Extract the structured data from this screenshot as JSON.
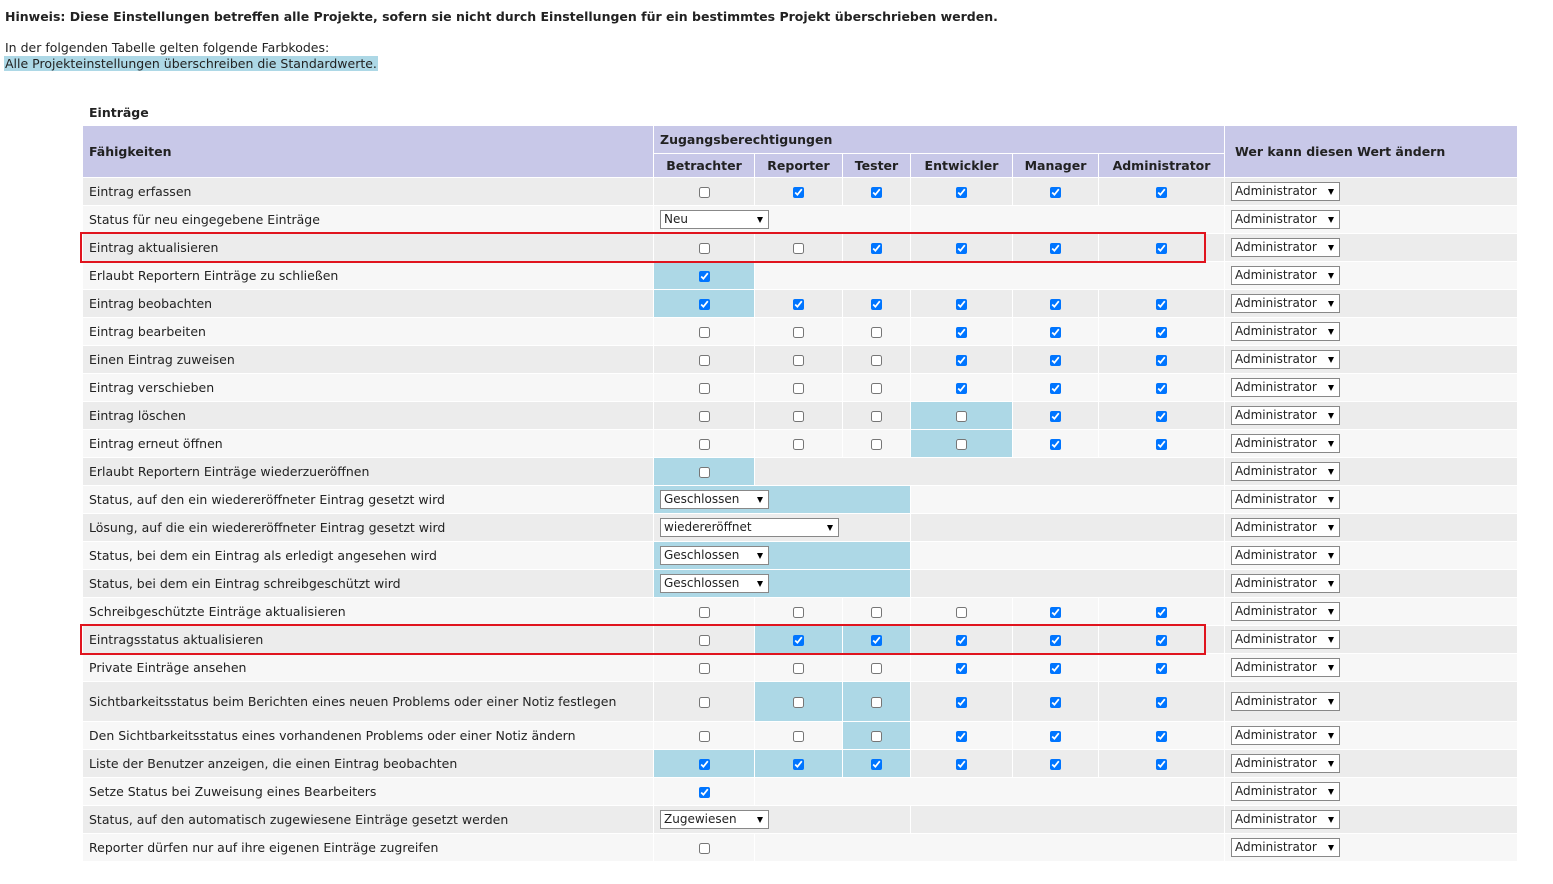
{
  "header": {
    "note": "Hinweis: Diese Einstellungen betreffen alle Projekte, sofern sie nicht durch Einstellungen für ein bestimmtes Projekt überschrieben werden."
  },
  "legend": {
    "intro": "In der folgenden Tabelle gelten folgende Farbkodes:",
    "items": [
      "Alle Projekteinstellungen überschreiben die Standardwerte."
    ]
  },
  "table": {
    "title": "Einträge",
    "col_capability": "Fähigkeiten",
    "col_group": "Zugangsberechtigungen",
    "roles": [
      "Betrachter",
      "Reporter",
      "Tester",
      "Entwickler",
      "Manager",
      "Administrator"
    ],
    "col_who": "Wer kann diesen Wert ändern",
    "rows": [
      {
        "label": "Eintrag erfassen",
        "checked": [
          false,
          true,
          true,
          true,
          true,
          true
        ],
        "highlight": [
          false,
          false,
          false,
          false,
          false,
          false
        ],
        "who": "Administrator"
      },
      {
        "label": "Status für neu eingegebene Einträge",
        "select": "Neu",
        "highlight": false,
        "who": "Administrator"
      },
      {
        "label": "Eintrag aktualisieren",
        "checked": [
          false,
          false,
          true,
          true,
          true,
          true
        ],
        "highlight": [
          false,
          false,
          false,
          false,
          false,
          false
        ],
        "who": "Administrator",
        "outlined": true
      },
      {
        "label": "Erlaubt Reportern Einträge zu schließen",
        "checked": true,
        "highlight": true,
        "who": "Administrator"
      },
      {
        "label": "Eintrag beobachten",
        "checked": [
          true,
          true,
          true,
          true,
          true,
          true
        ],
        "highlight": [
          true,
          false,
          false,
          false,
          false,
          false
        ],
        "who": "Administrator"
      },
      {
        "label": "Eintrag bearbeiten",
        "checked": [
          false,
          false,
          false,
          true,
          true,
          true
        ],
        "highlight": [
          false,
          false,
          false,
          false,
          false,
          false
        ],
        "who": "Administrator"
      },
      {
        "label": "Einen Eintrag zuweisen",
        "checked": [
          false,
          false,
          false,
          true,
          true,
          true
        ],
        "highlight": [
          false,
          false,
          false,
          false,
          false,
          false
        ],
        "who": "Administrator"
      },
      {
        "label": "Eintrag verschieben",
        "checked": [
          false,
          false,
          false,
          true,
          true,
          true
        ],
        "highlight": [
          false,
          false,
          false,
          false,
          false,
          false
        ],
        "who": "Administrator"
      },
      {
        "label": "Eintrag löschen",
        "checked": [
          false,
          false,
          false,
          false,
          true,
          true
        ],
        "highlight": [
          false,
          false,
          false,
          true,
          false,
          false
        ],
        "who": "Administrator"
      },
      {
        "label": "Eintrag erneut öffnen",
        "checked": [
          false,
          false,
          false,
          false,
          true,
          true
        ],
        "highlight": [
          false,
          false,
          false,
          true,
          false,
          false
        ],
        "who": "Administrator"
      },
      {
        "label": "Erlaubt Reportern Einträge wiederzueröffnen",
        "checked": false,
        "highlight": true,
        "who": "Administrator"
      },
      {
        "label": "Status, auf den ein wiedereröffneter Eintrag gesetzt wird",
        "select": "Geschlossen",
        "highlight": true,
        "who": "Administrator"
      },
      {
        "label": "Lösung, auf die ein wiedereröffneter Eintrag gesetzt wird",
        "select": "wiedereröffnet",
        "highlight": false,
        "who": "Administrator"
      },
      {
        "label": "Status, bei dem ein Eintrag als erledigt angesehen wird",
        "select": "Geschlossen",
        "highlight": true,
        "who": "Administrator"
      },
      {
        "label": "Status, bei dem ein Eintrag schreibgeschützt wird",
        "select": "Geschlossen",
        "highlight": true,
        "who": "Administrator"
      },
      {
        "label": "Schreibgeschützte Einträge aktualisieren",
        "checked": [
          false,
          false,
          false,
          false,
          true,
          true
        ],
        "highlight": [
          false,
          false,
          false,
          false,
          false,
          false
        ],
        "who": "Administrator"
      },
      {
        "label": "Eintragsstatus aktualisieren",
        "checked": [
          false,
          true,
          true,
          true,
          true,
          true
        ],
        "highlight": [
          false,
          true,
          true,
          false,
          false,
          false
        ],
        "who": "Administrator",
        "outlined": true
      },
      {
        "label": "Private Einträge ansehen",
        "checked": [
          false,
          false,
          false,
          true,
          true,
          true
        ],
        "highlight": [
          false,
          false,
          false,
          false,
          false,
          false
        ],
        "who": "Administrator"
      },
      {
        "label": "Sichtbarkeitsstatus beim Berichten eines neuen Problems oder einer Notiz festlegen",
        "checked": [
          false,
          false,
          false,
          true,
          true,
          true
        ],
        "highlight": [
          false,
          true,
          true,
          false,
          false,
          false
        ],
        "who": "Administrator"
      },
      {
        "label": "Den Sichtbarkeitsstatus eines vorhandenen Problems oder einer Notiz ändern",
        "checked": [
          false,
          false,
          false,
          true,
          true,
          true
        ],
        "highlight": [
          false,
          false,
          true,
          false,
          false,
          false
        ],
        "who": "Administrator"
      },
      {
        "label": "Liste der Benutzer anzeigen, die einen Eintrag beobachten",
        "checked": [
          true,
          true,
          true,
          true,
          true,
          true
        ],
        "highlight": [
          true,
          true,
          true,
          false,
          false,
          false
        ],
        "who": "Administrator"
      },
      {
        "label": "Setze Status bei Zuweisung eines Bearbeiters",
        "checked": true,
        "highlight": false,
        "who": "Administrator"
      },
      {
        "label": "Status, auf den automatisch zugewiesene Einträge gesetzt werden",
        "select": "Zugewiesen",
        "highlight": false,
        "who": "Administrator"
      },
      {
        "label": "Reporter dürfen nur auf ihre eigenen Einträge zugreifen",
        "checked": false,
        "highlight": false,
        "who": "Administrator"
      }
    ]
  }
}
